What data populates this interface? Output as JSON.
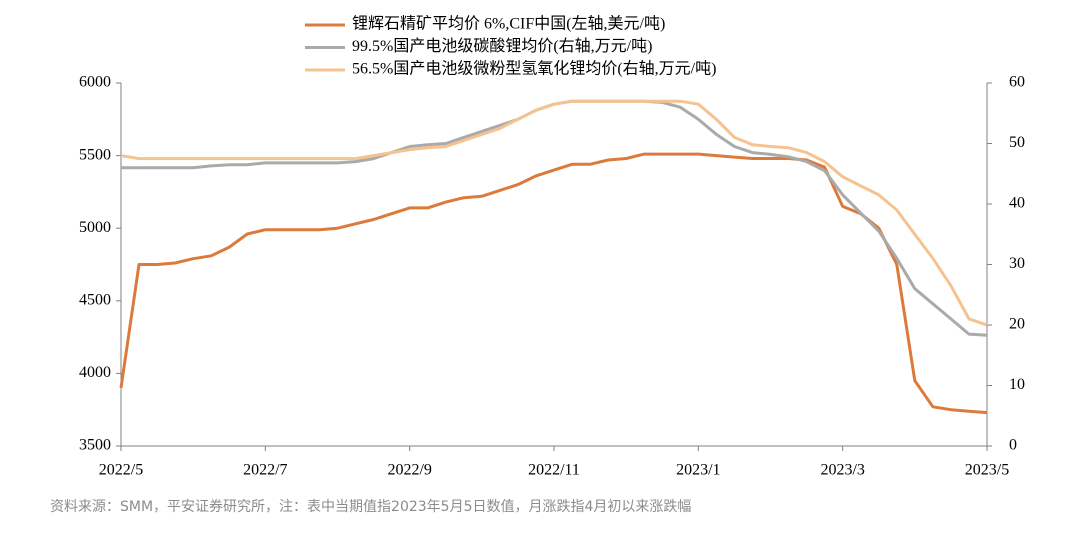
{
  "chart_data": {
    "type": "line",
    "x": [
      0,
      0.25,
      0.5,
      0.75,
      1,
      1.25,
      1.5,
      1.75,
      2,
      2.25,
      2.5,
      2.75,
      3,
      3.25,
      3.5,
      3.75,
      4,
      4.25,
      4.5,
      4.75,
      5,
      5.25,
      5.5,
      5.75,
      6,
      6.25,
      6.5,
      6.75,
      7,
      7.25,
      7.5,
      7.75,
      8,
      8.25,
      8.5,
      8.75,
      9,
      9.25,
      9.5,
      9.75,
      10,
      10.25,
      10.5,
      10.75,
      11,
      11.25,
      11.5,
      11.75,
      12
    ],
    "xlim": [
      0,
      12
    ],
    "xticks": [
      {
        "value": 0,
        "label": "2022/5"
      },
      {
        "value": 2,
        "label": "2022/7"
      },
      {
        "value": 4,
        "label": "2022/9"
      },
      {
        "value": 6,
        "label": "2022/11"
      },
      {
        "value": 8,
        "label": "2023/1"
      },
      {
        "value": 10,
        "label": "2023/3"
      },
      {
        "value": 12,
        "label": "2023/5"
      }
    ],
    "ylim": [
      3500,
      6000
    ],
    "yticks": [
      3500,
      4000,
      4500,
      5000,
      5500,
      6000
    ],
    "y2lim": [
      0,
      60
    ],
    "y2ticks": [
      0,
      10,
      20,
      30,
      40,
      50,
      60
    ],
    "series": [
      {
        "name": "锂辉石精矿平均价 6%,CIF中国(左轴,美元/吨)",
        "color": "#dc7a3c",
        "values": [
          3900,
          4750,
          4750,
          4760,
          4790,
          4810,
          4870,
          4960,
          4990,
          4990,
          4990,
          4990,
          5000,
          5030,
          5060,
          5100,
          5140,
          5140,
          5180,
          5210,
          5220,
          5260,
          5300,
          5360,
          5400,
          5440,
          5440,
          5470,
          5480,
          5510,
          5510,
          5510,
          5510,
          5500,
          5490,
          5480,
          5480,
          5480,
          5470,
          5420,
          5150,
          5100,
          5000,
          4750,
          3950,
          3770,
          3750,
          3740,
          3730
        ]
      },
      {
        "name": "99.5%国产电池级碳酸锂均价(右轴,万元/吨)",
        "color": "#aaaaaa",
        "axis": "y2",
        "values": [
          46,
          46,
          46,
          46,
          46,
          46.3,
          46.5,
          46.5,
          46.8,
          46.8,
          46.8,
          46.8,
          46.8,
          47,
          47.5,
          48.5,
          49.5,
          49.8,
          50,
          51,
          52,
          53,
          54,
          55.5,
          56.5,
          57,
          57,
          57,
          57,
          57,
          56.8,
          56,
          54,
          51.5,
          49.5,
          48.5,
          48.2,
          47.8,
          47,
          45.5,
          41.5,
          38.5,
          35.5,
          31,
          26,
          23.5,
          21,
          18.5,
          18.3
        ]
      },
      {
        "name": "56.5%国产电池级微粉型氢氧化锂均价(右轴,万元/吨)",
        "color": "#f5c390",
        "axis": "y2",
        "values": [
          48,
          47.5,
          47.5,
          47.5,
          47.5,
          47.5,
          47.5,
          47.5,
          47.5,
          47.5,
          47.5,
          47.5,
          47.5,
          47.5,
          48,
          48.5,
          49,
          49.3,
          49.5,
          50.5,
          51.5,
          52.5,
          54,
          55.5,
          56.5,
          57,
          57,
          57,
          57,
          57,
          57,
          57,
          56.5,
          54,
          51,
          49.8,
          49.5,
          49.3,
          48.5,
          47,
          44.5,
          43,
          41.5,
          39,
          35,
          31,
          26.5,
          21,
          20
        ]
      }
    ],
    "note": "资料来源：SMM，平安证券研究所，注：表中当期值指2023年5月5日数值，月涨跌指4月初以来涨跌幅"
  }
}
